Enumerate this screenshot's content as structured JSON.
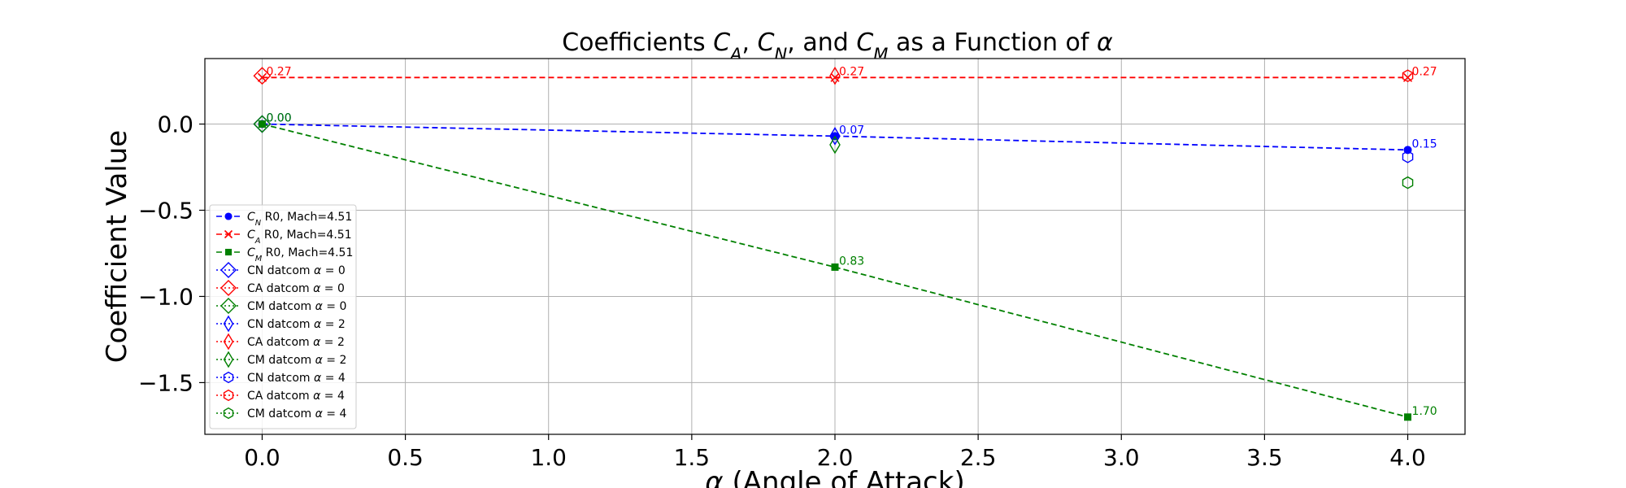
{
  "chart_data": {
    "type": "line",
    "title": "Coefficients $C_A$, $C_N$, and $C_M$ as a Function of $\\alpha$",
    "xlabel": "$\\alpha$ (Angle of Attack)",
    "ylabel": "Coefficient Value",
    "xlim": [
      -0.2,
      4.2
    ],
    "ylim": [
      -1.8,
      0.38
    ],
    "x_ticks": [
      "0.0",
      "0.5",
      "1.0",
      "1.5",
      "2.0",
      "2.5",
      "3.0",
      "3.5",
      "4.0"
    ],
    "y_ticks": [
      "0.0",
      "−0.5",
      "−1.0",
      "−1.5"
    ],
    "grid": true,
    "legend_position": "lower-left",
    "colors": {
      "CN": "#0000ff",
      "CA": "#ff0000",
      "CM": "#008000"
    },
    "series": [
      {
        "name": "$C_N$ R0, Mach=4.51",
        "key": "CN",
        "marker": "dot",
        "line": "dashed",
        "x": [
          0,
          2,
          4
        ],
        "y": [
          0.0,
          -0.07,
          -0.15
        ],
        "labels": [
          "0.00",
          "0.07",
          "0.15"
        ]
      },
      {
        "name": "$C_A$ R0, Mach=4.51",
        "key": "CA",
        "marker": "x",
        "line": "dashed",
        "x": [
          0,
          2,
          4
        ],
        "y": [
          0.27,
          0.27,
          0.27
        ],
        "labels": [
          "0.27",
          "0.27",
          "0.27"
        ]
      },
      {
        "name": "$C_M$ R0, Mach=4.51",
        "key": "CM",
        "marker": "square",
        "line": "dashed",
        "x": [
          0,
          2,
          4
        ],
        "y": [
          0.0,
          -0.83,
          -1.7
        ],
        "labels": [
          "0.00",
          "0.83",
          "1.70"
        ]
      }
    ],
    "datcom_points": [
      {
        "name": "CN datcom $\\alpha$ = 0",
        "key": "CN",
        "marker": "diamond",
        "x": 0,
        "y": 0.0
      },
      {
        "name": "CA datcom $\\alpha$ = 0",
        "key": "CA",
        "marker": "diamond",
        "x": 0,
        "y": 0.28
      },
      {
        "name": "CM datcom $\\alpha$ = 0",
        "key": "CM",
        "marker": "diamond",
        "x": 0,
        "y": 0.0
      },
      {
        "name": "CN datcom $\\alpha$ = 2",
        "key": "CN",
        "marker": "thin-diamond",
        "x": 2,
        "y": -0.07
      },
      {
        "name": "CA datcom $\\alpha$ = 2",
        "key": "CA",
        "marker": "thin-diamond",
        "x": 2,
        "y": 0.28
      },
      {
        "name": "CM datcom $\\alpha$ = 2",
        "key": "CM",
        "marker": "thin-diamond",
        "x": 2,
        "y": -0.12
      },
      {
        "name": "CN datcom $\\alpha$ = 4",
        "key": "CN",
        "marker": "hexagon",
        "x": 4,
        "y": -0.19
      },
      {
        "name": "CA datcom $\\alpha$ = 4",
        "key": "CA",
        "marker": "hexagon",
        "x": 4,
        "y": 0.28
      },
      {
        "name": "CM datcom $\\alpha$ = 4",
        "key": "CM",
        "marker": "hexagon",
        "x": 4,
        "y": -0.34
      }
    ]
  }
}
